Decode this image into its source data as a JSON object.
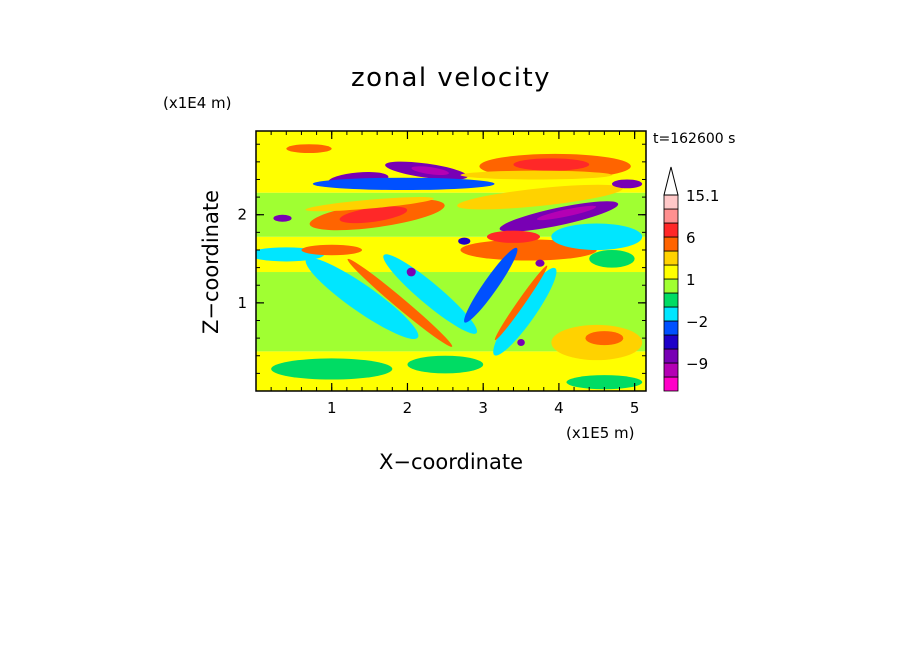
{
  "chart_data": {
    "type": "heatmap",
    "title": "zonal velocity",
    "time_label": "t=162600 s",
    "xlabel": "X−coordinate",
    "ylabel": "Z−coordinate",
    "x_unit": "(x1E5 m)",
    "y_unit": "(x1E4 m)",
    "xlim": [
      0,
      5.15
    ],
    "ylim": [
      0,
      2.95
    ],
    "x_ticks": [
      {
        "value": 1,
        "label": "1"
      },
      {
        "value": 2,
        "label": "2"
      },
      {
        "value": 3,
        "label": "3"
      },
      {
        "value": 4,
        "label": "4"
      },
      {
        "value": 5,
        "label": "5"
      }
    ],
    "y_ticks": [
      {
        "value": 1,
        "label": "1"
      },
      {
        "value": 2,
        "label": "2"
      }
    ],
    "colorbar": {
      "levels": [
        -15,
        -12,
        -9,
        -6,
        -3,
        -2,
        -1,
        0,
        1,
        2,
        3,
        6,
        9,
        12,
        15.1
      ],
      "colors": [
        "#ff00c8",
        "#b400b4",
        "#7800b4",
        "#1e00c8",
        "#0050ff",
        "#00e6ff",
        "#00dc64",
        "#a0ff32",
        "#ffff00",
        "#ffd200",
        "#ff6400",
        "#ff2828",
        "#ff9090",
        "#ffc8c8"
      ],
      "top_arrow_color": "#ffffff",
      "labels": [
        {
          "value": 15.1,
          "label": "15.1"
        },
        {
          "value": 6,
          "label": "6"
        },
        {
          "value": 1,
          "label": "1"
        },
        {
          "value": -2,
          "label": "−2"
        },
        {
          "value": -9,
          "label": "−9"
        }
      ]
    },
    "field_bands": [
      {
        "zmin": 0.0,
        "zmax": 0.45,
        "value": 1.3
      },
      {
        "zmin": 0.45,
        "zmax": 1.35,
        "value": 0.5
      },
      {
        "zmin": 1.35,
        "zmax": 1.75,
        "value": 1.4
      },
      {
        "zmin": 1.75,
        "zmax": 2.25,
        "value": 0.3
      },
      {
        "zmin": 2.25,
        "zmax": 2.95,
        "value": 1.5
      }
    ],
    "features": [
      {
        "x": 1.6,
        "z": 2.0,
        "rx": 0.9,
        "rz": 0.14,
        "tilt": -8,
        "value": 5
      },
      {
        "x": 1.55,
        "z": 2.0,
        "rx": 0.45,
        "rz": 0.08,
        "tilt": -8,
        "value": 7
      },
      {
        "x": 1.5,
        "z": 2.12,
        "rx": 0.85,
        "rz": 0.05,
        "tilt": -5,
        "value": 2.5
      },
      {
        "x": 1.35,
        "z": 2.4,
        "rx": 0.4,
        "rz": 0.08,
        "tilt": -5,
        "value": -7
      },
      {
        "x": 2.25,
        "z": 2.5,
        "rx": 0.55,
        "rz": 0.08,
        "tilt": 8,
        "value": -7
      },
      {
        "x": 2.3,
        "z": 2.5,
        "rx": 0.25,
        "rz": 0.04,
        "tilt": 8,
        "value": -12
      },
      {
        "x": 1.95,
        "z": 2.35,
        "rx": 1.2,
        "rz": 0.07,
        "tilt": 0,
        "value": -2.5
      },
      {
        "x": 3.95,
        "z": 2.55,
        "rx": 1.0,
        "rz": 0.14,
        "tilt": 0,
        "value": 5
      },
      {
        "x": 3.9,
        "z": 2.57,
        "rx": 0.5,
        "rz": 0.07,
        "tilt": 0,
        "value": 8
      },
      {
        "x": 3.7,
        "z": 2.45,
        "rx": 1.0,
        "rz": 0.05,
        "tilt": 0,
        "value": 2.5
      },
      {
        "x": 4.0,
        "z": 1.98,
        "rx": 0.8,
        "rz": 0.1,
        "tilt": -12,
        "value": -7
      },
      {
        "x": 4.1,
        "z": 2.02,
        "rx": 0.4,
        "rz": 0.04,
        "tilt": -12,
        "value": -12
      },
      {
        "x": 3.75,
        "z": 2.2,
        "rx": 1.1,
        "rz": 0.1,
        "tilt": -6,
        "value": 2.5
      },
      {
        "x": 3.6,
        "z": 1.6,
        "rx": 0.9,
        "rz": 0.12,
        "tilt": 0,
        "value": 4
      },
      {
        "x": 3.4,
        "z": 1.75,
        "rx": 0.35,
        "rz": 0.07,
        "tilt": 0,
        "value": 7
      },
      {
        "x": 4.5,
        "z": 1.75,
        "rx": 0.6,
        "rz": 0.15,
        "tilt": 0,
        "value": -1.5
      },
      {
        "x": 4.7,
        "z": 1.5,
        "rx": 0.3,
        "rz": 0.1,
        "tilt": 0,
        "value": -0.5
      },
      {
        "x": 1.4,
        "z": 1.05,
        "rx": 0.9,
        "rz": 0.15,
        "tilt": 35,
        "value": -1.5
      },
      {
        "x": 2.3,
        "z": 1.1,
        "rx": 0.8,
        "rz": 0.12,
        "tilt": 40,
        "value": -1.5
      },
      {
        "x": 1.9,
        "z": 1.0,
        "rx": 0.9,
        "rz": 0.06,
        "tilt": 40,
        "value": 3
      },
      {
        "x": 3.55,
        "z": 0.9,
        "rx": 0.7,
        "rz": 0.12,
        "tilt": -55,
        "value": -1.5
      },
      {
        "x": 3.1,
        "z": 1.2,
        "rx": 0.6,
        "rz": 0.08,
        "tilt": -55,
        "value": -3
      },
      {
        "x": 3.5,
        "z": 1.0,
        "rx": 0.6,
        "rz": 0.04,
        "tilt": -55,
        "value": 4
      },
      {
        "x": 4.5,
        "z": 0.55,
        "rx": 0.6,
        "rz": 0.2,
        "tilt": 0,
        "value": 2.5
      },
      {
        "x": 4.6,
        "z": 0.6,
        "rx": 0.25,
        "rz": 0.08,
        "tilt": 0,
        "value": 5
      },
      {
        "x": 0.6,
        "z": 0.95,
        "rx": 0.5,
        "rz": 0.18,
        "tilt": 0,
        "value": 0.5
      },
      {
        "x": 1.0,
        "z": 0.25,
        "rx": 0.8,
        "rz": 0.12,
        "tilt": 0,
        "value": -0.5
      },
      {
        "x": 2.5,
        "z": 0.3,
        "rx": 0.5,
        "rz": 0.1,
        "tilt": 0,
        "value": -0.5
      },
      {
        "x": 4.6,
        "z": 0.1,
        "rx": 0.5,
        "rz": 0.08,
        "tilt": 0,
        "value": -0.5
      },
      {
        "x": 0.4,
        "z": 1.55,
        "rx": 0.5,
        "rz": 0.08,
        "tilt": 0,
        "value": -1.5
      },
      {
        "x": 1.0,
        "z": 1.6,
        "rx": 0.4,
        "rz": 0.06,
        "tilt": 0,
        "value": 3
      },
      {
        "x": 0.35,
        "z": 1.96,
        "rx": 0.12,
        "rz": 0.04,
        "tilt": 0,
        "value": -7
      },
      {
        "x": 0.7,
        "z": 2.75,
        "rx": 0.3,
        "rz": 0.05,
        "tilt": 0,
        "value": 4
      },
      {
        "x": 4.9,
        "z": 2.35,
        "rx": 0.2,
        "rz": 0.05,
        "tilt": 0,
        "value": -7
      },
      {
        "x": 2.05,
        "z": 1.35,
        "rx": 0.06,
        "rz": 0.05,
        "tilt": 0,
        "value": -8
      },
      {
        "x": 2.75,
        "z": 1.7,
        "rx": 0.08,
        "rz": 0.04,
        "tilt": 0,
        "value": -4
      },
      {
        "x": 3.5,
        "z": 0.55,
        "rx": 0.05,
        "rz": 0.04,
        "tilt": 0,
        "value": -8
      },
      {
        "x": 3.75,
        "z": 1.45,
        "rx": 0.06,
        "rz": 0.04,
        "tilt": 0,
        "value": -8
      }
    ]
  }
}
